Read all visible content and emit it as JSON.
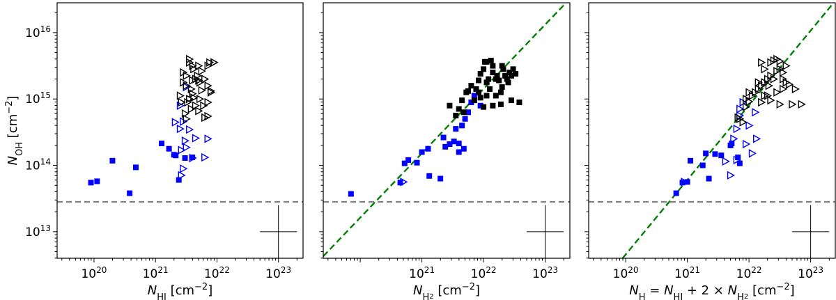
{
  "colors": {
    "blue": "#0000ff",
    "black": "#000000",
    "threshold": "#808080",
    "fit": "#008000"
  },
  "chart_data": [
    {
      "type": "scatter",
      "scale": "log-log",
      "xlabel": "N_HI [cm^-2]",
      "xlabel_parts": {
        "sym": "N",
        "sub": "HI",
        "unit": "[cm",
        "exp": "−2",
        "close": "]"
      },
      "ylabel_parts": {
        "sym": "N",
        "sub": "OH",
        "unit": "[cm",
        "exp": "−2",
        "close": "]"
      },
      "xlim_log10": [
        19.4,
        23.4
      ],
      "ylim_log10": [
        12.6,
        16.45
      ],
      "x_ticks": [
        {
          "base": "10",
          "exp": "20",
          "v": 20
        },
        {
          "base": "10",
          "exp": "21",
          "v": 21
        },
        {
          "base": "10",
          "exp": "22",
          "v": 22
        },
        {
          "base": "10",
          "exp": "23",
          "v": 23
        }
      ],
      "y_ticks": [
        {
          "base": "10",
          "exp": "13",
          "v": 13
        },
        {
          "base": "10",
          "exp": "14",
          "v": 14
        },
        {
          "base": "10",
          "exp": "15",
          "v": 15
        },
        {
          "base": "10",
          "exp": "16",
          "v": 16
        }
      ],
      "threshold_log10": 13.45,
      "errorbar_center_log10": [
        23.0,
        13.0
      ],
      "errorbar_halfwidth_dex": [
        0.3,
        0.4
      ],
      "series": [
        {
          "name": "detections",
          "marker": "square",
          "color": "blue",
          "points": [
            [
              19.95,
              13.74
            ],
            [
              20.05,
              13.76
            ],
            [
              20.3,
              14.07
            ],
            [
              20.58,
              13.58
            ],
            [
              20.68,
              13.97
            ],
            [
              21.1,
              14.33
            ],
            [
              21.22,
              14.25
            ],
            [
              21.3,
              14.16
            ],
            [
              21.33,
              14.15
            ],
            [
              21.38,
              13.78
            ],
            [
              21.6,
              14.12
            ],
            [
              21.48,
              14.11
            ]
          ]
        },
        {
          "name": "blue-limits",
          "marker": "triangle-right",
          "color": "blue",
          "points": [
            [
              21.5,
              15.18
            ],
            [
              21.4,
              14.9
            ],
            [
              21.45,
              14.66
            ],
            [
              21.32,
              14.65
            ],
            [
              21.55,
              14.54
            ],
            [
              21.65,
              14.41
            ],
            [
              21.48,
              14.37
            ],
            [
              21.5,
              14.27
            ],
            [
              21.42,
              14.23
            ],
            [
              21.85,
              14.4
            ],
            [
              21.8,
              14.12
            ],
            [
              21.6,
              14.11
            ],
            [
              21.42,
              13.85
            ],
            [
              21.45,
              13.95
            ],
            [
              21.4,
              14.55
            ]
          ]
        },
        {
          "name": "black-limits",
          "marker": "triangle-right",
          "color": "black",
          "points": [
            [
              21.55,
              15.6
            ],
            [
              21.7,
              15.5
            ],
            [
              21.85,
              15.5
            ],
            [
              21.95,
              15.55
            ],
            [
              21.45,
              15.4
            ],
            [
              21.5,
              15.35
            ],
            [
              21.68,
              15.35
            ],
            [
              21.75,
              15.42
            ],
            [
              21.6,
              15.28
            ],
            [
              21.8,
              15.3
            ],
            [
              21.85,
              15.2
            ],
            [
              21.5,
              15.2
            ],
            [
              21.4,
              15.05
            ],
            [
              21.55,
              15.0
            ],
            [
              21.6,
              15.08
            ],
            [
              21.75,
              15.13
            ],
            [
              21.9,
              15.12
            ],
            [
              21.52,
              14.95
            ],
            [
              21.48,
              14.78
            ],
            [
              21.65,
              14.9
            ],
            [
              21.7,
              14.82
            ],
            [
              21.8,
              14.72
            ],
            [
              21.72,
              15.0
            ],
            [
              21.62,
              15.02
            ],
            [
              21.85,
              14.95
            ],
            [
              21.9,
              15.1
            ],
            [
              21.95,
              15.55
            ],
            [
              21.45,
              15.25
            ],
            [
              21.58,
              15.15
            ],
            [
              21.65,
              15.3
            ],
            [
              21.55,
              15.55
            ],
            [
              21.6,
              15.5
            ],
            [
              21.42,
              14.95
            ],
            [
              21.58,
              14.85
            ],
            [
              21.88,
              15.55
            ],
            [
              21.62,
              15.45
            ],
            [
              21.72,
              15.25
            ],
            [
              21.78,
              14.9
            ],
            [
              21.85,
              14.74
            ],
            [
              21.5,
              14.7
            ],
            [
              21.7,
              15.28
            ]
          ]
        }
      ]
    },
    {
      "type": "scatter",
      "scale": "log-log",
      "xlabel": "N_H2 [cm^-2]",
      "xlabel_parts": {
        "sym": "N",
        "sub": "H",
        "subsub": "2",
        "unit": "[cm",
        "exp": "−2",
        "close": "]"
      },
      "xlim_log10": [
        19.4,
        23.4
      ],
      "ylim_log10": [
        12.6,
        16.45
      ],
      "x_ticks": [
        {
          "base": "10",
          "exp": "21",
          "v": 21
        },
        {
          "base": "10",
          "exp": "22",
          "v": 22
        },
        {
          "base": "10",
          "exp": "23",
          "v": 23
        }
      ],
      "threshold_log10": 13.45,
      "fit_line": {
        "x_log10": [
          19.4,
          23.4
        ],
        "y_log10": [
          12.63,
          16.51
        ]
      },
      "errorbar_center_log10": [
        23.0,
        13.0
      ],
      "errorbar_halfwidth_dex": [
        0.3,
        0.4
      ],
      "series": [
        {
          "name": "blue-detections",
          "marker": "square",
          "color": "blue",
          "points": [
            [
              19.85,
              13.57
            ],
            [
              20.65,
              13.74
            ],
            [
              20.72,
              14.03
            ],
            [
              20.78,
              14.08
            ],
            [
              20.92,
              14.04
            ],
            [
              21.0,
              14.2
            ],
            [
              21.1,
              14.25
            ],
            [
              21.12,
              13.84
            ],
            [
              21.3,
              13.8
            ],
            [
              21.35,
              14.42
            ],
            [
              21.38,
              14.28
            ],
            [
              21.45,
              14.32
            ],
            [
              21.52,
              14.36
            ],
            [
              21.6,
              14.33
            ],
            [
              21.68,
              14.25
            ],
            [
              21.55,
              14.55
            ],
            [
              21.7,
              14.7
            ],
            [
              21.75,
              14.8
            ],
            [
              21.8,
              14.95
            ],
            [
              21.85,
              15.05
            ],
            [
              21.88,
              15.15
            ],
            [
              21.65,
              14.6
            ],
            [
              21.6,
              14.2
            ],
            [
              21.95,
              14.9
            ]
          ]
        },
        {
          "name": "blue-limits",
          "marker": "triangle-right",
          "color": "blue",
          "points": [
            [
              20.7,
              13.75
            ]
          ]
        },
        {
          "name": "black-detections",
          "marker": "square",
          "color": "black",
          "points": [
            [
              21.45,
              14.9
            ],
            [
              21.55,
              14.75
            ],
            [
              21.6,
              14.85
            ],
            [
              21.65,
              14.98
            ],
            [
              21.68,
              14.8
            ],
            [
              21.72,
              15.1
            ],
            [
              21.75,
              15.12
            ],
            [
              21.8,
              15.2
            ],
            [
              21.85,
              14.98
            ],
            [
              21.88,
              15.15
            ],
            [
              21.92,
              15.1
            ],
            [
              21.95,
              15.38
            ],
            [
              22.0,
              15.45
            ],
            [
              22.02,
              15.56
            ],
            [
              22.05,
              15.56
            ],
            [
              22.05,
              15.25
            ],
            [
              22.08,
              15.3
            ],
            [
              22.1,
              15.15
            ],
            [
              22.12,
              15.58
            ],
            [
              22.15,
              15.5
            ],
            [
              22.15,
              15.4
            ],
            [
              22.2,
              15.3
            ],
            [
              22.22,
              15.35
            ],
            [
              22.25,
              15.28
            ],
            [
              22.28,
              15.1
            ],
            [
              22.3,
              15.18
            ],
            [
              22.32,
              15.45
            ],
            [
              22.35,
              15.35
            ],
            [
              22.38,
              15.3
            ],
            [
              22.42,
              15.4
            ],
            [
              22.45,
              15.35
            ],
            [
              22.48,
              15.45
            ],
            [
              22.52,
              15.38
            ],
            [
              22.2,
              15.05
            ],
            [
              22.15,
              14.9
            ],
            [
              22.45,
              14.98
            ],
            [
              22.58,
              14.95
            ],
            [
              22.05,
              15.05
            ],
            [
              21.95,
              15.02
            ],
            [
              22.28,
              14.92
            ],
            [
              22.0,
              14.88
            ],
            [
              21.92,
              15.28
            ],
            [
              22.3,
              15.5
            ],
            [
              22.4,
              15.25
            ]
          ]
        }
      ]
    },
    {
      "type": "scatter",
      "scale": "log-log",
      "xlabel": "N_H = N_HI + 2 × N_H2 [cm^-2]",
      "xlabel_parts": {
        "sym": "N",
        "sub": "H",
        "eq": " = ",
        "sym2": "N",
        "sub2": "HI",
        "plus": " + 2 × ",
        "sym3": "N",
        "sub3": "H",
        "subsub3": "2",
        "unit": "[cm",
        "exp": "−2",
        "close": "]"
      },
      "xlim_log10": [
        19.4,
        23.4
      ],
      "ylim_log10": [
        12.6,
        16.45
      ],
      "x_ticks": [
        {
          "base": "10",
          "exp": "20",
          "v": 20
        },
        {
          "base": "10",
          "exp": "21",
          "v": 21
        },
        {
          "base": "10",
          "exp": "22",
          "v": 22
        },
        {
          "base": "10",
          "exp": "23",
          "v": 23
        }
      ],
      "threshold_log10": 13.45,
      "fit_line": {
        "x_log10": [
          19.95,
          23.4
        ],
        "y_log10": [
          12.6,
          16.48
        ]
      },
      "errorbar_center_log10": [
        23.0,
        13.0
      ],
      "errorbar_halfwidth_dex": [
        0.3,
        0.4
      ],
      "series": [
        {
          "name": "blue-detections",
          "marker": "square",
          "color": "blue",
          "points": [
            [
              20.82,
              13.58
            ],
            [
              20.92,
              13.74
            ],
            [
              21.0,
              13.75
            ],
            [
              21.05,
              14.07
            ],
            [
              21.25,
              14.0
            ],
            [
              21.35,
              13.8
            ],
            [
              21.45,
              14.17
            ],
            [
              21.3,
              14.18
            ],
            [
              21.55,
              14.15
            ],
            [
              21.7,
              14.3
            ],
            [
              21.72,
              14.33
            ],
            [
              21.82,
              14.12
            ],
            [
              21.85,
              14.03
            ]
          ]
        },
        {
          "name": "blue-limits",
          "marker": "triangle-right",
          "color": "blue",
          "points": [
            [
              20.95,
              13.75
            ],
            [
              21.62,
              14.06
            ],
            [
              21.7,
              13.85
            ],
            [
              21.8,
              14.08
            ],
            [
              21.95,
              14.32
            ],
            [
              22.05,
              14.18
            ],
            [
              22.12,
              14.4
            ],
            [
              21.85,
              14.75
            ],
            [
              21.9,
              14.95
            ],
            [
              22.0,
              14.6
            ],
            [
              22.1,
              14.8
            ],
            [
              21.85,
              14.85
            ],
            [
              21.8,
              14.55
            ],
            [
              21.75,
              14.4
            ]
          ]
        },
        {
          "name": "black-limits",
          "marker": "triangle-right",
          "color": "black",
          "points": [
            [
              21.82,
              14.72
            ],
            [
              21.9,
              14.65
            ],
            [
              21.95,
              14.88
            ],
            [
              22.0,
              14.96
            ],
            [
              21.95,
              15.0
            ],
            [
              22.05,
              15.05
            ],
            [
              22.1,
              15.1
            ],
            [
              22.15,
              15.15
            ],
            [
              22.2,
              15.2
            ],
            [
              22.25,
              15.25
            ],
            [
              22.3,
              15.3
            ],
            [
              22.35,
              15.35
            ],
            [
              22.4,
              15.3
            ],
            [
              22.45,
              15.42
            ],
            [
              22.5,
              15.45
            ],
            [
              22.55,
              15.4
            ],
            [
              22.6,
              15.5
            ],
            [
              22.35,
              15.55
            ],
            [
              22.4,
              15.58
            ],
            [
              22.5,
              15.57
            ],
            [
              22.45,
              15.6
            ],
            [
              22.2,
              15.55
            ],
            [
              22.25,
              15.45
            ],
            [
              22.32,
              15.2
            ],
            [
              22.25,
              15.05
            ],
            [
              22.2,
              14.95
            ],
            [
              22.35,
              14.98
            ],
            [
              22.45,
              15.1
            ],
            [
              22.6,
              15.25
            ],
            [
              22.65,
              15.22
            ],
            [
              22.55,
              15.15
            ],
            [
              22.75,
              15.15
            ],
            [
              22.5,
              14.92
            ],
            [
              22.7,
              14.92
            ],
            [
              22.85,
              14.92
            ],
            [
              22.0,
              15.1
            ],
            [
              21.85,
              14.7
            ],
            [
              22.15,
              15.25
            ],
            [
              22.55,
              15.3
            ],
            [
              22.3,
              15.05
            ]
          ]
        }
      ]
    }
  ]
}
